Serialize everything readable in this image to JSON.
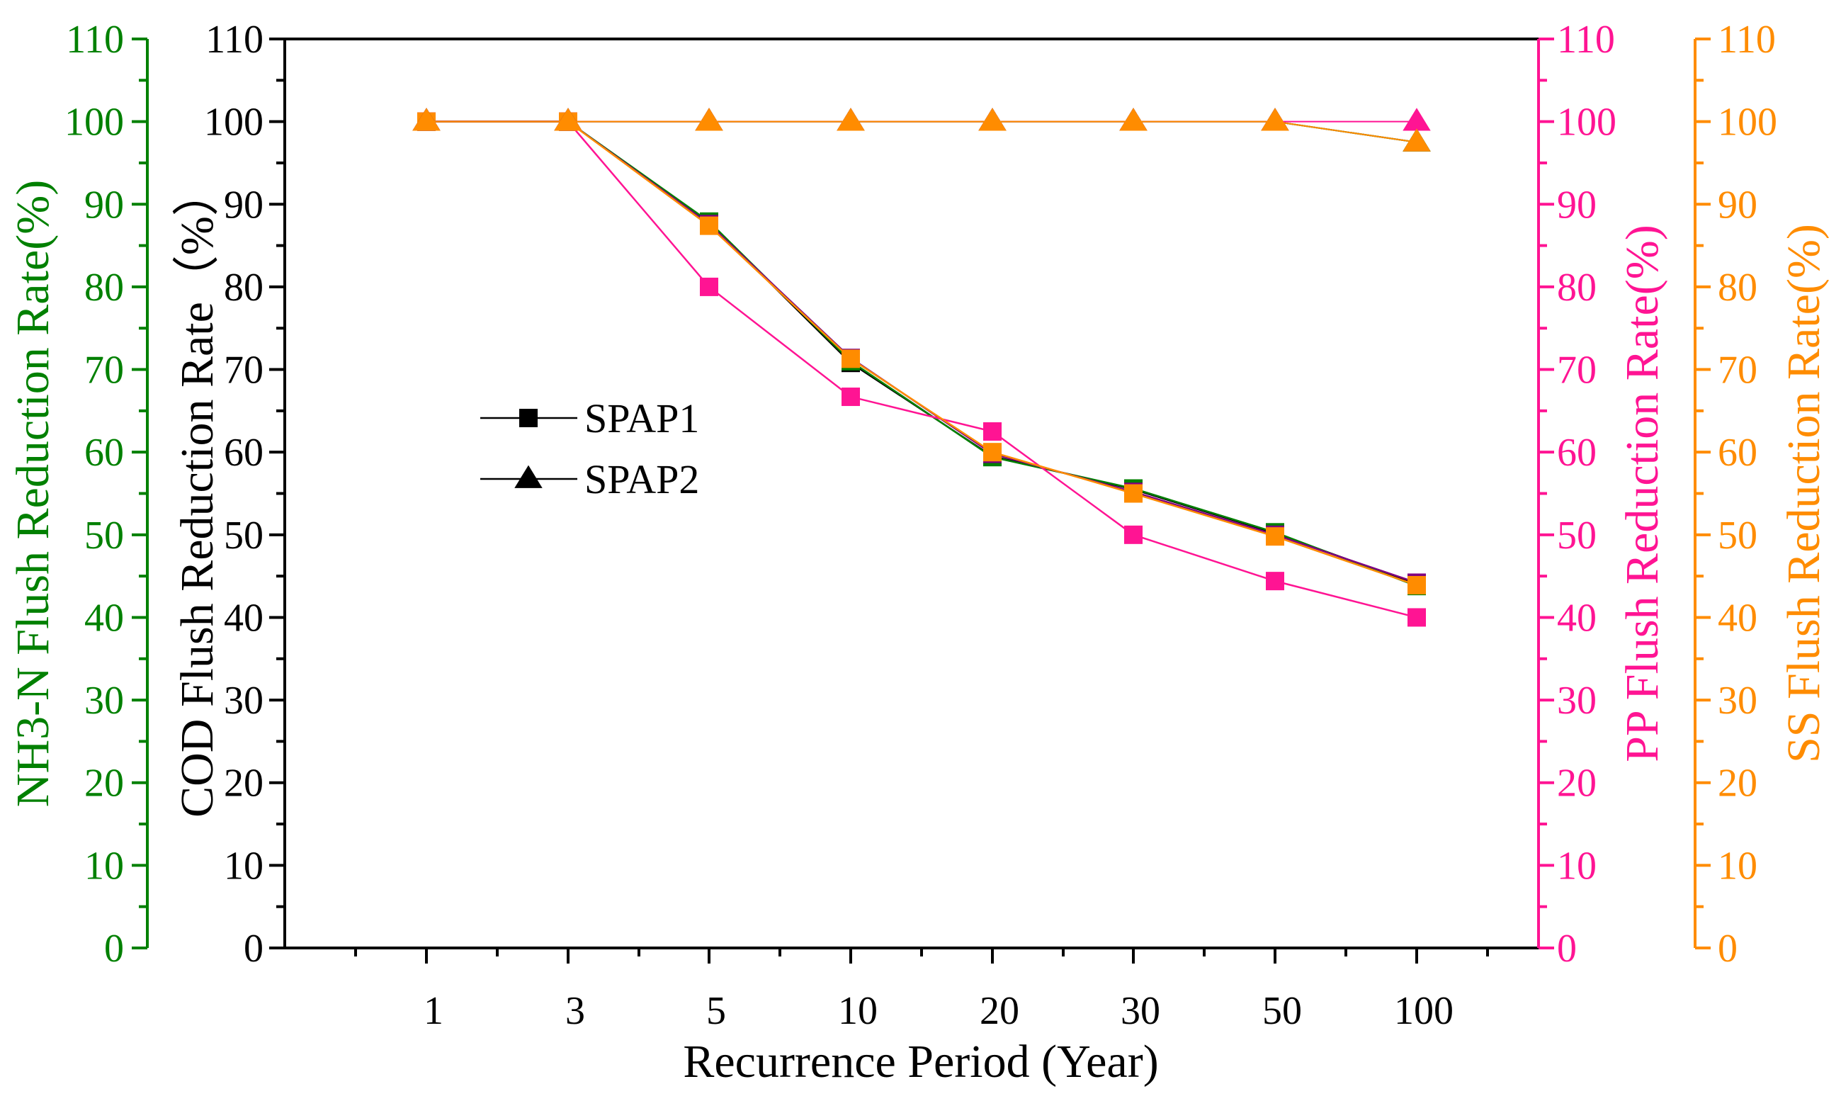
{
  "colors": {
    "cod": "#000000",
    "nh3": "#008000",
    "pp": "#ff1493",
    "ss": "#ff8c00",
    "purple": "#800080",
    "background": "#ffffff"
  },
  "chart_data": {
    "type": "line",
    "xlabel": "Recurrence Period (Year)",
    "categories": [
      "1",
      "3",
      "5",
      "10",
      "20",
      "30",
      "50",
      "100"
    ],
    "axes": {
      "cod": {
        "label": "COD Flush Reduction Rate（%）",
        "ylim": [
          0,
          110
        ],
        "ticks": [
          "0",
          "10",
          "20",
          "30",
          "40",
          "50",
          "60",
          "70",
          "80",
          "90",
          "100",
          "110"
        ]
      },
      "nh3": {
        "label": "NH3-N Flush Reduction Rate(%)",
        "ylim": [
          0,
          110
        ],
        "ticks": [
          "0",
          "10",
          "20",
          "30",
          "40",
          "50",
          "60",
          "70",
          "80",
          "90",
          "100",
          "110"
        ]
      },
      "pp": {
        "label": "PP Flush Reduction Rate(%)",
        "ylim": [
          0,
          110
        ],
        "ticks": [
          "0",
          "10",
          "20",
          "30",
          "40",
          "50",
          "60",
          "70",
          "80",
          "90",
          "100",
          "110"
        ]
      },
      "ss": {
        "label": "SS Flush Reduction Rate(%)",
        "ylim": [
          0,
          110
        ],
        "ticks": [
          "0",
          "10",
          "20",
          "30",
          "40",
          "50",
          "60",
          "70",
          "80",
          "90",
          "100",
          "110"
        ]
      }
    },
    "legend": [
      {
        "label": "SPAP1",
        "marker": "square"
      },
      {
        "label": "SPAP2",
        "marker": "triangle"
      }
    ],
    "series": [
      {
        "name": "COD SPAP1",
        "pollutant": "cod",
        "scenario": "SPAP1",
        "marker": "square",
        "color": "cod",
        "values": [
          100,
          100,
          87.8,
          70.8,
          59.5,
          55.5,
          50.2,
          44.0
        ]
      },
      {
        "name": "NH3-N SPAP1",
        "pollutant": "nh3",
        "scenario": "SPAP1",
        "marker": "square",
        "color": "nh3",
        "values": [
          100,
          100,
          87.9,
          71.0,
          59.4,
          55.6,
          50.3,
          43.8
        ]
      },
      {
        "name": "SS SPAP1 (purple)",
        "pollutant": "ss",
        "scenario": "SPAP1",
        "marker": "square",
        "color": "purple",
        "values": [
          100,
          100,
          87.6,
          71.4,
          59.8,
          55.2,
          50.0,
          44.2
        ]
      },
      {
        "name": "PP SPAP1",
        "pollutant": "pp",
        "scenario": "SPAP1",
        "marker": "square",
        "color": "pp",
        "values": [
          100,
          100,
          80.0,
          66.7,
          62.5,
          50.0,
          44.4,
          40.0
        ]
      },
      {
        "name": "SS SPAP1",
        "pollutant": "ss",
        "scenario": "SPAP1",
        "marker": "square",
        "color": "ss",
        "values": [
          100,
          100,
          87.4,
          71.3,
          60.0,
          55.0,
          49.8,
          43.9
        ]
      },
      {
        "name": "COD SPAP2",
        "pollutant": "cod",
        "scenario": "SPAP2",
        "marker": "triangle",
        "color": "cod",
        "values": [
          100,
          100,
          100,
          100,
          100,
          100,
          100,
          97.5
        ]
      },
      {
        "name": "NH3-N SPAP2",
        "pollutant": "nh3",
        "scenario": "SPAP2",
        "marker": "triangle",
        "color": "nh3",
        "values": [
          100,
          100,
          100,
          100,
          100,
          100,
          100,
          97.5
        ]
      },
      {
        "name": "PP SPAP2",
        "pollutant": "pp",
        "scenario": "SPAP2",
        "marker": "triangle",
        "color": "pp",
        "values": [
          100,
          100,
          100,
          100,
          100,
          100,
          100,
          100
        ]
      },
      {
        "name": "SS SPAP2",
        "pollutant": "ss",
        "scenario": "SPAP2",
        "marker": "triangle",
        "color": "ss",
        "values": [
          100,
          100,
          100,
          100,
          100,
          100,
          100,
          97.5
        ]
      }
    ]
  }
}
